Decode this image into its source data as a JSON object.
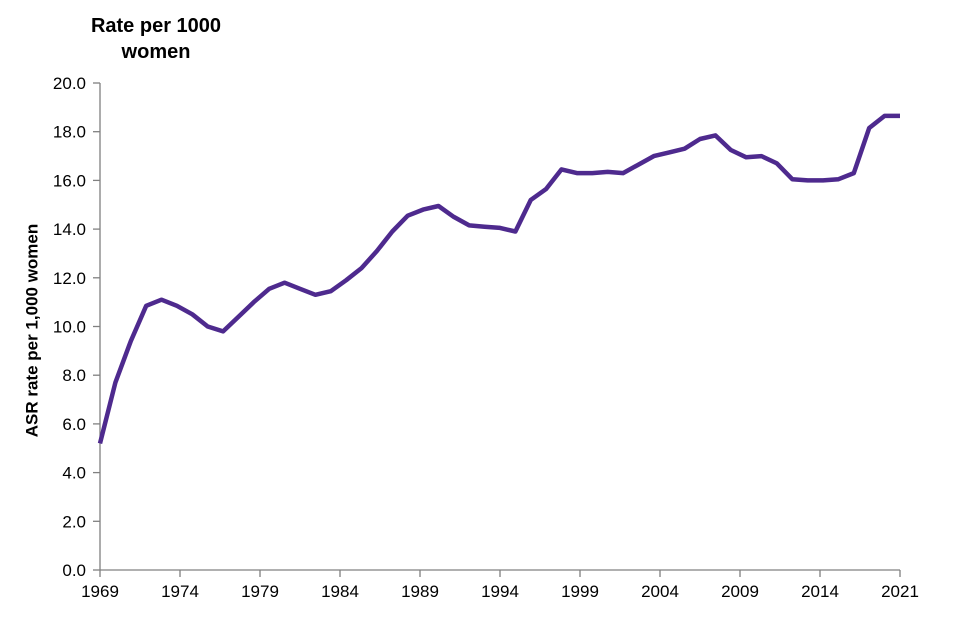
{
  "chart_data": {
    "type": "line",
    "title": "Rate per 1000 women",
    "title_line1": "Rate per 1000",
    "title_line2": "women",
    "ylabel": "ASR rate per 1,000 women",
    "xlabel": "",
    "ylim": [
      0,
      20
    ],
    "ytick_step": 2,
    "ytick_decimals": 1,
    "xtick_labels": [
      "1969",
      "1974",
      "1979",
      "1984",
      "1989",
      "1994",
      "1999",
      "2004",
      "2009",
      "2014",
      "2021"
    ],
    "grid": false,
    "legend_position": "none",
    "line_color": "#4E2A8E",
    "axis_color": "#808080",
    "text_color": "#000000",
    "background_color": "#ffffff",
    "x": [
      1969,
      1970,
      1971,
      1972,
      1973,
      1974,
      1975,
      1976,
      1977,
      1978,
      1979,
      1980,
      1981,
      1982,
      1983,
      1984,
      1985,
      1986,
      1987,
      1988,
      1989,
      1990,
      1991,
      1992,
      1993,
      1994,
      1995,
      1996,
      1997,
      1998,
      1999,
      2000,
      2001,
      2002,
      2003,
      2004,
      2005,
      2006,
      2007,
      2008,
      2009,
      2010,
      2011,
      2012,
      2013,
      2014,
      2015,
      2016,
      2017,
      2018,
      2019,
      2020,
      2021
    ],
    "series": [
      {
        "name": "ASR rate per 1,000 women",
        "values": [
          5.2,
          7.7,
          9.4,
          10.85,
          11.1,
          10.85,
          10.5,
          10.0,
          9.8,
          10.4,
          11.0,
          11.55,
          11.8,
          11.55,
          11.3,
          11.45,
          11.9,
          12.4,
          13.1,
          13.9,
          14.55,
          14.8,
          14.95,
          14.5,
          14.15,
          14.1,
          14.05,
          13.9,
          15.2,
          15.65,
          16.45,
          16.3,
          16.3,
          16.35,
          16.3,
          16.65,
          17.0,
          17.15,
          17.3,
          17.7,
          17.85,
          17.25,
          16.95,
          17.0,
          16.7,
          16.05,
          16.0,
          16.0,
          16.05,
          16.3,
          18.15,
          18.65,
          18.65
        ]
      }
    ]
  }
}
